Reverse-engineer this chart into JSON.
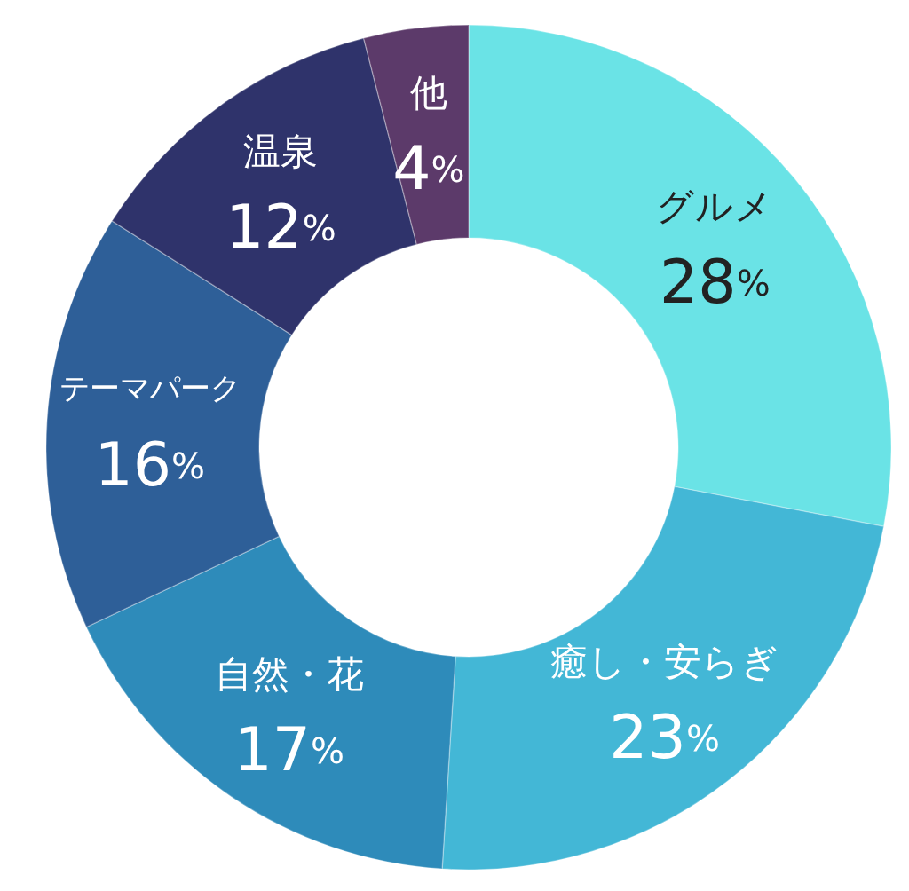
{
  "chart_data": {
    "type": "donut",
    "categories": [
      "グルメ",
      "癒し・安らぎ",
      "自然・花",
      "テーマパーク",
      "温泉",
      "他"
    ],
    "values": [
      28,
      23,
      17,
      16,
      12,
      4
    ],
    "colors": [
      "#6ae3e6",
      "#43b7d6",
      "#2e8bba",
      "#2e5f98",
      "#2f336b",
      "#5c3a6a"
    ],
    "value_labels": [
      "28%",
      "23%",
      "17%",
      "16%",
      "12%",
      "4%"
    ]
  }
}
